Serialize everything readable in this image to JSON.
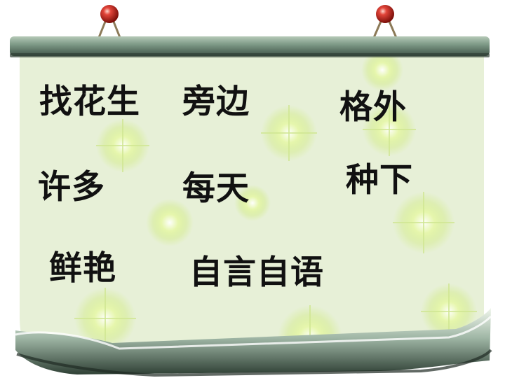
{
  "words": [
    "找花生",
    "旁边",
    "格外",
    "许多",
    "每天",
    "种下",
    "鲜艳",
    "自言自语"
  ],
  "colors": {
    "board": "#e7f0d7",
    "rod": "#7f9b88",
    "rod_dark": "#44574b",
    "pin": "#c7241b",
    "text": "#111111"
  }
}
